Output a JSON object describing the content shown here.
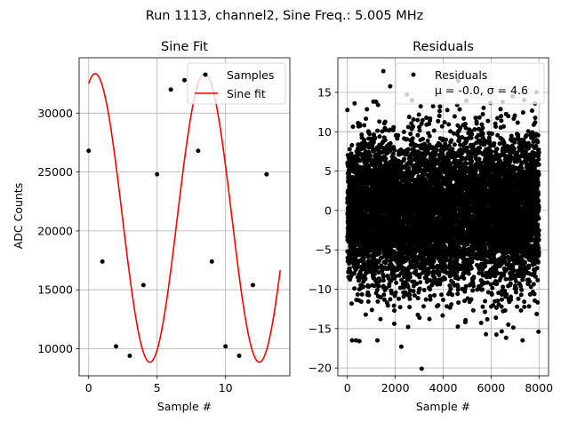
{
  "figure": {
    "suptitle": "Run 1113, channel2, Sine Freq.: 5.005 MHz"
  },
  "chart_data": [
    {
      "type": "line",
      "title": "Sine Fit",
      "xlabel": "Sample #",
      "ylabel": "ADC Counts",
      "xlim": [
        -0.7,
        14.7
      ],
      "ylim": [
        7700,
        34700
      ],
      "xticks": [
        0,
        5,
        10
      ],
      "yticks": [
        10000,
        15000,
        20000,
        25000,
        30000
      ],
      "grid": true,
      "legend": {
        "placement": "top-right",
        "entries": [
          "Samples",
          "Sine fit"
        ]
      },
      "series": [
        {
          "name": "Samples",
          "style": "markers",
          "color": "#000000",
          "x": [
            0,
            1,
            2,
            3,
            4,
            5,
            6,
            7,
            8,
            9,
            10,
            11,
            12,
            13
          ],
          "y": [
            26800,
            17400,
            10200,
            9400,
            15400,
            24800,
            32000,
            32800,
            26800,
            17400,
            10200,
            9400,
            15400,
            24800
          ]
        },
        {
          "name": "Sine fit",
          "style": "line",
          "color": "#ff0000",
          "model": {
            "offset": 21100,
            "amplitude": 12250,
            "period": 8.0,
            "phase": 1.2,
            "x_min": 0,
            "x_max": 14
          }
        }
      ]
    },
    {
      "type": "scatter",
      "title": "Residuals",
      "xlabel": "Sample #",
      "ylabel": "",
      "xlim": [
        -400,
        8400
      ],
      "ylim": [
        -21,
        19.4
      ],
      "xticks": [
        0,
        2000,
        4000,
        6000,
        8000
      ],
      "yticks": [
        -20,
        -15,
        -10,
        -5,
        0,
        5,
        10,
        15
      ],
      "grid": true,
      "legend": {
        "placement": "top-right",
        "entries": [
          "Residuals",
          "μ = -0.0, σ = 4.6"
        ]
      },
      "series": [
        {
          "name": "Residuals",
          "color": "#000000",
          "n_points": 8000,
          "mean": 0.0,
          "sigma": 4.6,
          "outliers": [
            {
              "x": 1500,
              "y": 17.7
            },
            {
              "x": 3100,
              "y": -20.1
            },
            {
              "x": 2250,
              "y": -17.3
            },
            {
              "x": 500,
              "y": -16.6
            },
            {
              "x": 7980,
              "y": -15.4
            },
            {
              "x": 6900,
              "y": 14.5
            },
            {
              "x": 2700,
              "y": 14.0
            },
            {
              "x": 300,
              "y": 13.6
            }
          ]
        }
      ]
    }
  ]
}
